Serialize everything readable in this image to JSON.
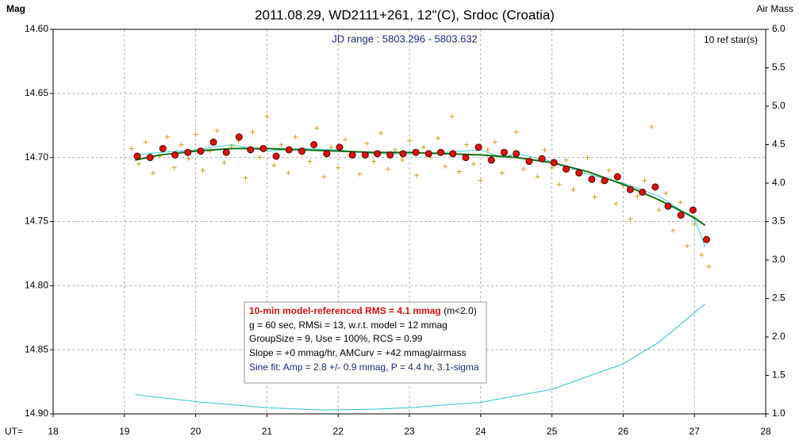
{
  "chart_data": {
    "type": "scatter",
    "title": "2011.08.29, WD2111+261, 12\"(C), Srdoc (Croatia)",
    "subtitle": "JD range : 5803.296 - 5803.632",
    "note": "10 ref star(s)",
    "y_label": "Mag",
    "y2_label": "Air Mass",
    "x_label": "UT=",
    "xlim": [
      18,
      28
    ],
    "xticks": [
      18,
      19,
      20,
      21,
      22,
      23,
      24,
      25,
      26,
      27,
      28
    ],
    "ylim": [
      14.6,
      14.9
    ],
    "y_inverted": true,
    "yticks": [
      {
        "value": 14.6,
        "label": "14.60"
      },
      14.65,
      {
        "value": 14.7,
        "label": "14.70"
      },
      14.75,
      {
        "value": 14.8,
        "label": "14.80"
      },
      14.85,
      {
        "value": 14.9,
        "label": "14.90"
      }
    ],
    "y2lim": [
      1.0,
      6.0
    ],
    "y2ticks": [
      {
        "value": 1,
        "label": "1.0"
      },
      1.5,
      {
        "value": 2,
        "label": "2.0"
      },
      2.5,
      {
        "value": 3,
        "label": "3.0"
      },
      3.5,
      {
        "value": 4,
        "label": "4.0"
      },
      4.5,
      {
        "value": 5,
        "label": "5.0"
      },
      5.5,
      {
        "value": 6,
        "label": "6.0"
      }
    ],
    "grid": true,
    "annotation": {
      "line1": "10-min model-referenced RMS = 4.1 mmag",
      "line1_suffix": "(m<2.0)",
      "line2": "g = 60 sec, RMSi = 13, w.r.t. model = 12 mmag",
      "line3": "GroupSize = 9, Use = 100%, RCS = 0.99",
      "line4": "Slope = +0 mmag/hr, AMCurv = +42 mmag/airmass",
      "line5": "Sine fit: Amp = 2.8 +/- 0.9 mmag, P = 4.4 hr, 3.1-sigma"
    },
    "series": [
      {
        "type": "cross",
        "color": "#d4a020",
        "x": [
          19.1,
          19.2,
          19.3,
          19.4,
          19.5,
          19.6,
          19.7,
          19.8,
          19.9,
          20.0,
          20.1,
          20.2,
          20.3,
          20.4,
          20.5,
          20.6,
          20.7,
          20.8,
          20.9,
          21.0,
          21.1,
          21.2,
          21.3,
          21.4,
          21.5,
          21.6,
          21.7,
          21.8,
          21.9,
          22.0,
          22.1,
          22.2,
          22.3,
          22.4,
          22.5,
          22.6,
          22.7,
          22.8,
          22.9,
          23.0,
          23.1,
          23.2,
          23.3,
          23.4,
          23.5,
          23.6,
          23.7,
          23.8,
          23.9,
          24.0,
          24.1,
          24.2,
          24.3,
          24.4,
          24.5,
          24.6,
          24.7,
          24.8,
          24.9,
          25.0,
          25.1,
          25.2,
          25.3,
          25.4,
          25.5,
          25.6,
          25.7,
          25.8,
          25.9,
          26.0,
          26.1,
          26.2,
          26.3,
          26.4,
          26.5,
          26.6,
          26.7,
          26.8,
          26.9,
          27.0,
          27.1,
          27.2
        ],
        "values": [
          14.693,
          14.705,
          14.688,
          14.712,
          14.699,
          14.684,
          14.708,
          14.69,
          14.701,
          14.682,
          14.71,
          14.695,
          14.679,
          14.704,
          14.691,
          14.687,
          14.716,
          14.68,
          14.7,
          14.668,
          14.706,
          14.69,
          14.712,
          14.684,
          14.697,
          14.703,
          14.677,
          14.715,
          14.692,
          14.708,
          14.686,
          14.699,
          14.713,
          14.689,
          14.703,
          14.681,
          14.709,
          14.694,
          14.702,
          14.687,
          14.714,
          14.692,
          14.7,
          14.685,
          14.707,
          14.668,
          14.711,
          14.69,
          14.705,
          14.718,
          14.694,
          14.688,
          14.712,
          14.699,
          14.68,
          14.709,
          14.701,
          14.715,
          14.694,
          14.708,
          14.721,
          14.702,
          14.725,
          14.713,
          14.7,
          14.731,
          14.719,
          14.71,
          14.736,
          14.722,
          14.748,
          14.73,
          14.718,
          14.676,
          14.741,
          14.728,
          14.757,
          14.735,
          14.769,
          14.752,
          14.776,
          14.785
        ]
      },
      {
        "type": "line",
        "color": "#30d0d8",
        "x": [
          19.15,
          19.5,
          20.0,
          20.5,
          21.0,
          21.5,
          22.0,
          22.5,
          23.0,
          23.5,
          24.0,
          24.3,
          24.5,
          25.0,
          25.5,
          26.0,
          26.5,
          27.0,
          27.1,
          27.15
        ],
        "values": [
          14.698,
          14.696,
          14.694,
          14.69,
          14.695,
          14.693,
          14.694,
          14.697,
          14.697,
          14.696,
          14.694,
          14.7,
          14.697,
          14.703,
          14.713,
          14.72,
          14.73,
          14.748,
          14.762,
          14.77
        ]
      },
      {
        "type": "line",
        "color": "#107010",
        "width": 2,
        "x": [
          19.15,
          19.5,
          20.0,
          20.5,
          21.0,
          21.5,
          22.0,
          22.5,
          23.0,
          23.5,
          24.0,
          24.5,
          25.0,
          25.5,
          26.0,
          26.5,
          27.0,
          27.15
        ],
        "values": [
          14.702,
          14.698,
          14.695,
          14.693,
          14.693,
          14.694,
          14.695,
          14.696,
          14.696,
          14.697,
          14.698,
          14.7,
          14.704,
          14.711,
          14.721,
          14.733,
          14.747,
          14.753
        ]
      },
      {
        "type": "dot",
        "color": "#e01010",
        "x": [
          19.18,
          19.36,
          19.54,
          19.71,
          19.89,
          20.07,
          20.25,
          20.43,
          20.61,
          20.77,
          20.95,
          21.13,
          21.31,
          21.49,
          21.66,
          21.84,
          22.02,
          22.2,
          22.38,
          22.55,
          22.73,
          22.91,
          23.09,
          23.27,
          23.44,
          23.61,
          23.79,
          23.97,
          24.15,
          24.33,
          24.5,
          24.68,
          24.86,
          25.03,
          25.2,
          25.38,
          25.56,
          25.74,
          25.92,
          26.1,
          26.27,
          26.45,
          26.63,
          26.81,
          26.98,
          27.17
        ],
        "values": [
          14.699,
          14.7,
          14.693,
          14.698,
          14.696,
          14.695,
          14.688,
          14.696,
          14.684,
          14.694,
          14.693,
          14.699,
          14.694,
          14.695,
          14.69,
          14.697,
          14.692,
          14.698,
          14.698,
          14.697,
          14.698,
          14.697,
          14.696,
          14.697,
          14.696,
          14.697,
          14.7,
          14.692,
          14.702,
          14.696,
          14.697,
          14.703,
          14.701,
          14.704,
          14.709,
          14.712,
          14.717,
          14.718,
          14.715,
          14.725,
          14.727,
          14.723,
          14.738,
          14.745,
          14.741,
          14.764
        ]
      },
      {
        "type": "line",
        "color": "#30c0d0",
        "axis": "y2",
        "x": [
          19.15,
          20.0,
          21.0,
          21.8,
          22.5,
          23.0,
          24.0,
          25.0,
          26.0,
          26.5,
          27.15
        ],
        "values": [
          1.25,
          1.16,
          1.08,
          1.05,
          1.06,
          1.08,
          1.15,
          1.32,
          1.65,
          1.93,
          2.43
        ]
      }
    ]
  }
}
